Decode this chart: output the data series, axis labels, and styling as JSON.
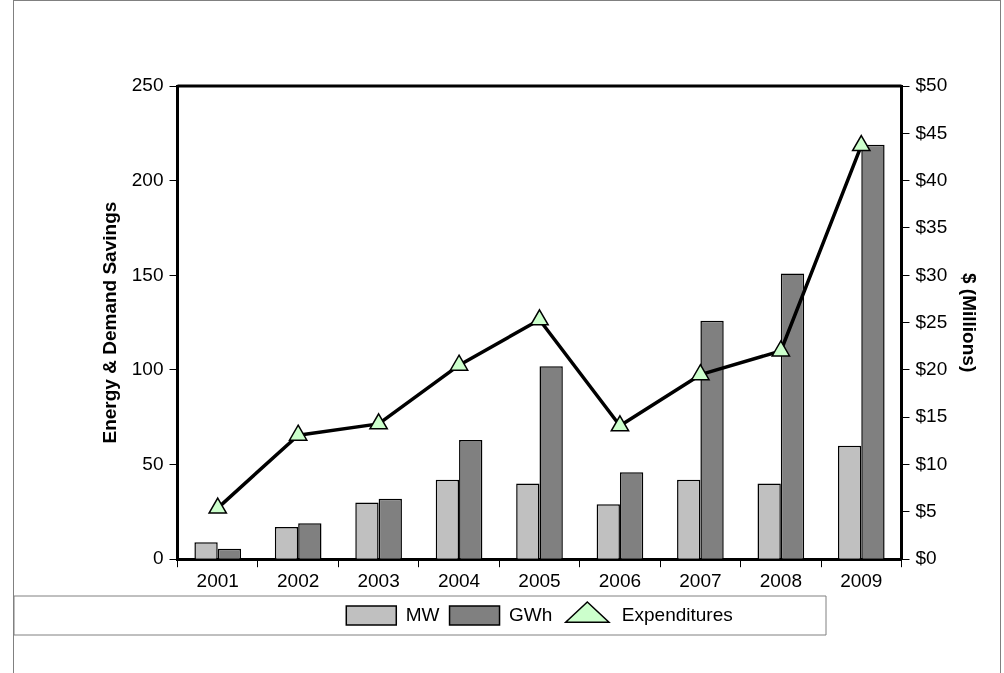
{
  "chart_data": {
    "type": "bar",
    "ylabel": "Energy & Demand Savings",
    "y2label": "$ (Millions)",
    "categories": [
      "2001",
      "2002",
      "2003",
      "2004",
      "2005",
      "2006",
      "2007",
      "2008",
      "2009"
    ],
    "series": [
      {
        "name": "MW",
        "color": "#c0c0c0",
        "values": [
          9,
          17,
          30,
          42,
          40,
          29,
          42,
          40,
          60
        ]
      },
      {
        "name": "GWh",
        "color": "#808080",
        "values": [
          5.5,
          19,
          32,
          63,
          102,
          46,
          126,
          151,
          219
        ]
      },
      {
        "name": "Expenditures",
        "type": "line",
        "axis": "y2",
        "color": "#000000",
        "marker": "triangle",
        "values": [
          5.4,
          13.1,
          14.3,
          20.5,
          25.3,
          14.1,
          19.5,
          22,
          43.7
        ]
      }
    ],
    "ylim": [
      0,
      250
    ],
    "yticks": [
      0,
      50,
      100,
      150,
      200,
      250
    ],
    "y2lim": [
      0,
      50
    ],
    "y2ticks": [
      {
        "value": 0,
        "label": "$0"
      },
      {
        "value": 5,
        "label": "$5"
      },
      {
        "value": 10,
        "label": "$10"
      },
      {
        "value": 15,
        "label": "$15"
      },
      {
        "value": 20,
        "label": "$20"
      },
      {
        "value": 25,
        "label": "$25"
      },
      {
        "value": 30,
        "label": "$30"
      },
      {
        "value": 35,
        "label": "$35"
      },
      {
        "value": 40,
        "label": "$40"
      },
      {
        "value": 45,
        "label": "$45"
      },
      {
        "value": 50,
        "label": "$50"
      }
    ],
    "grid": false,
    "legend": "bottom"
  }
}
